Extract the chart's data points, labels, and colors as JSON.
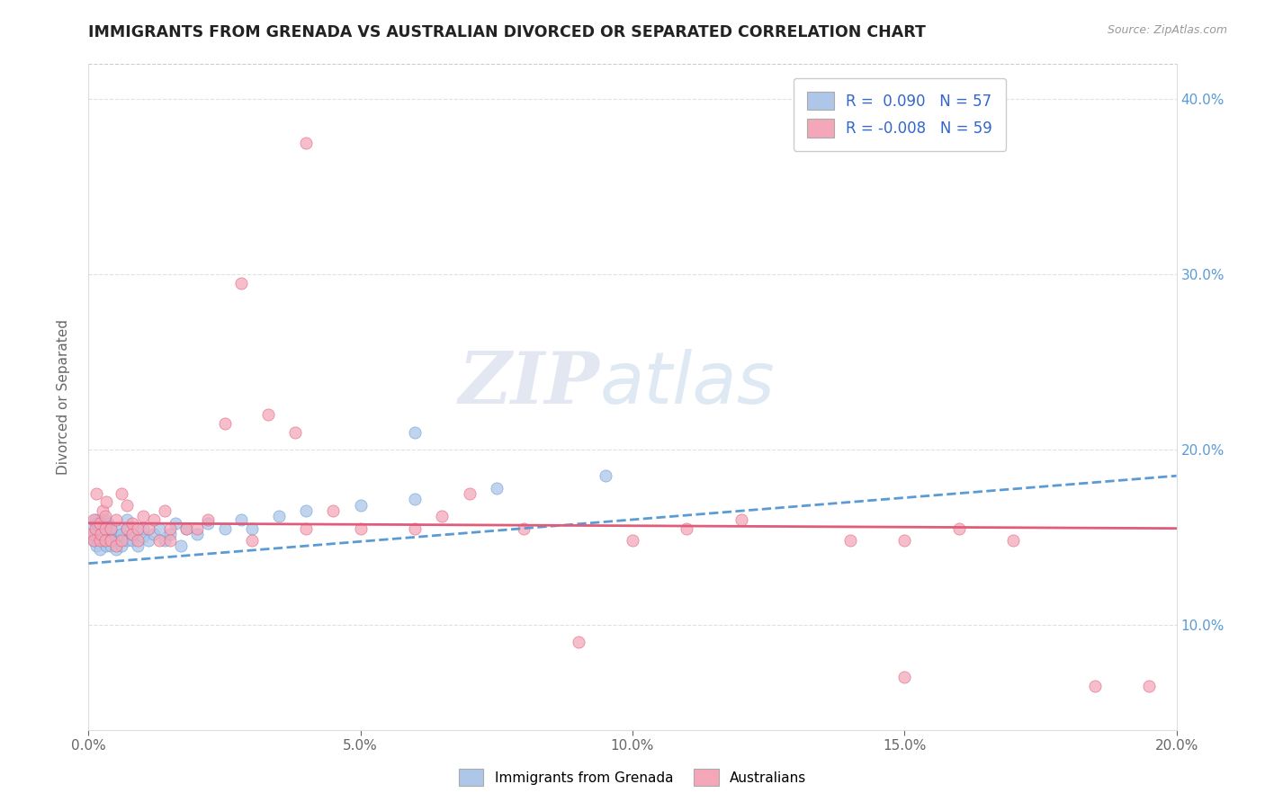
{
  "title": "IMMIGRANTS FROM GRENADA VS AUSTRALIAN DIVORCED OR SEPARATED CORRELATION CHART",
  "source_text": "Source: ZipAtlas.com",
  "ylabel": "Divorced or Separated",
  "r_blue": 0.09,
  "n_blue": 57,
  "r_pink": -0.008,
  "n_pink": 59,
  "xlim": [
    0.0,
    0.2
  ],
  "ylim": [
    0.04,
    0.42
  ],
  "xtick_labels": [
    "0.0%",
    "5.0%",
    "10.0%",
    "15.0%",
    "20.0%"
  ],
  "xtick_vals": [
    0.0,
    0.05,
    0.1,
    0.15,
    0.2
  ],
  "ytick_labels_right": [
    "10.0%",
    "20.0%",
    "30.0%",
    "40.0%"
  ],
  "ytick_vals": [
    0.1,
    0.2,
    0.3,
    0.4
  ],
  "legend_labels": [
    "Immigrants from Grenada",
    "Australians"
  ],
  "color_blue": "#aec6e8",
  "color_pink": "#f4a7b9",
  "line_color_blue": "#5b9bd5",
  "line_color_pink": "#e05c7a",
  "background_color": "#ffffff",
  "blue_scatter_x": [
    0.0005,
    0.0008,
    0.001,
    0.001,
    0.0012,
    0.0015,
    0.0015,
    0.0018,
    0.002,
    0.002,
    0.002,
    0.0022,
    0.0025,
    0.003,
    0.003,
    0.003,
    0.003,
    0.0033,
    0.0035,
    0.004,
    0.004,
    0.004,
    0.0042,
    0.005,
    0.005,
    0.005,
    0.0055,
    0.006,
    0.006,
    0.007,
    0.007,
    0.007,
    0.008,
    0.008,
    0.009,
    0.01,
    0.01,
    0.011,
    0.012,
    0.013,
    0.014,
    0.015,
    0.016,
    0.017,
    0.018,
    0.02,
    0.022,
    0.025,
    0.028,
    0.03,
    0.035,
    0.04,
    0.05,
    0.06,
    0.075,
    0.095,
    0.06
  ],
  "blue_scatter_y": [
    0.155,
    0.15,
    0.148,
    0.152,
    0.16,
    0.145,
    0.158,
    0.155,
    0.143,
    0.15,
    0.157,
    0.152,
    0.148,
    0.155,
    0.16,
    0.148,
    0.152,
    0.145,
    0.158,
    0.15,
    0.145,
    0.155,
    0.148,
    0.143,
    0.15,
    0.155,
    0.148,
    0.145,
    0.152,
    0.148,
    0.155,
    0.16,
    0.148,
    0.152,
    0.145,
    0.15,
    0.155,
    0.148,
    0.152,
    0.155,
    0.148,
    0.152,
    0.158,
    0.145,
    0.155,
    0.152,
    0.158,
    0.155,
    0.16,
    0.155,
    0.162,
    0.165,
    0.168,
    0.172,
    0.178,
    0.185,
    0.21
  ],
  "pink_scatter_x": [
    0.0005,
    0.001,
    0.001,
    0.0012,
    0.0015,
    0.002,
    0.002,
    0.0022,
    0.0025,
    0.003,
    0.003,
    0.003,
    0.0033,
    0.004,
    0.004,
    0.005,
    0.005,
    0.006,
    0.006,
    0.007,
    0.007,
    0.008,
    0.008,
    0.009,
    0.009,
    0.01,
    0.011,
    0.012,
    0.013,
    0.014,
    0.015,
    0.015,
    0.018,
    0.02,
    0.022,
    0.025,
    0.028,
    0.03,
    0.033,
    0.038,
    0.04,
    0.045,
    0.05,
    0.06,
    0.065,
    0.07,
    0.08,
    0.09,
    0.1,
    0.11,
    0.12,
    0.14,
    0.15,
    0.16,
    0.17,
    0.185,
    0.195,
    0.04,
    0.15
  ],
  "pink_scatter_y": [
    0.152,
    0.16,
    0.148,
    0.155,
    0.175,
    0.158,
    0.148,
    0.152,
    0.165,
    0.155,
    0.148,
    0.162,
    0.17,
    0.155,
    0.148,
    0.16,
    0.145,
    0.175,
    0.148,
    0.155,
    0.168,
    0.152,
    0.158,
    0.148,
    0.155,
    0.162,
    0.155,
    0.16,
    0.148,
    0.165,
    0.155,
    0.148,
    0.155,
    0.155,
    0.16,
    0.215,
    0.295,
    0.148,
    0.22,
    0.21,
    0.155,
    0.165,
    0.155,
    0.155,
    0.162,
    0.175,
    0.155,
    0.09,
    0.148,
    0.155,
    0.16,
    0.148,
    0.148,
    0.155,
    0.148,
    0.065,
    0.065,
    0.375,
    0.07
  ],
  "blue_trend_x0": 0.0,
  "blue_trend_x1": 0.2,
  "blue_trend_y0": 0.135,
  "blue_trend_y1": 0.185,
  "pink_trend_x0": 0.0,
  "pink_trend_x1": 0.2,
  "pink_trend_y0": 0.158,
  "pink_trend_y1": 0.155
}
